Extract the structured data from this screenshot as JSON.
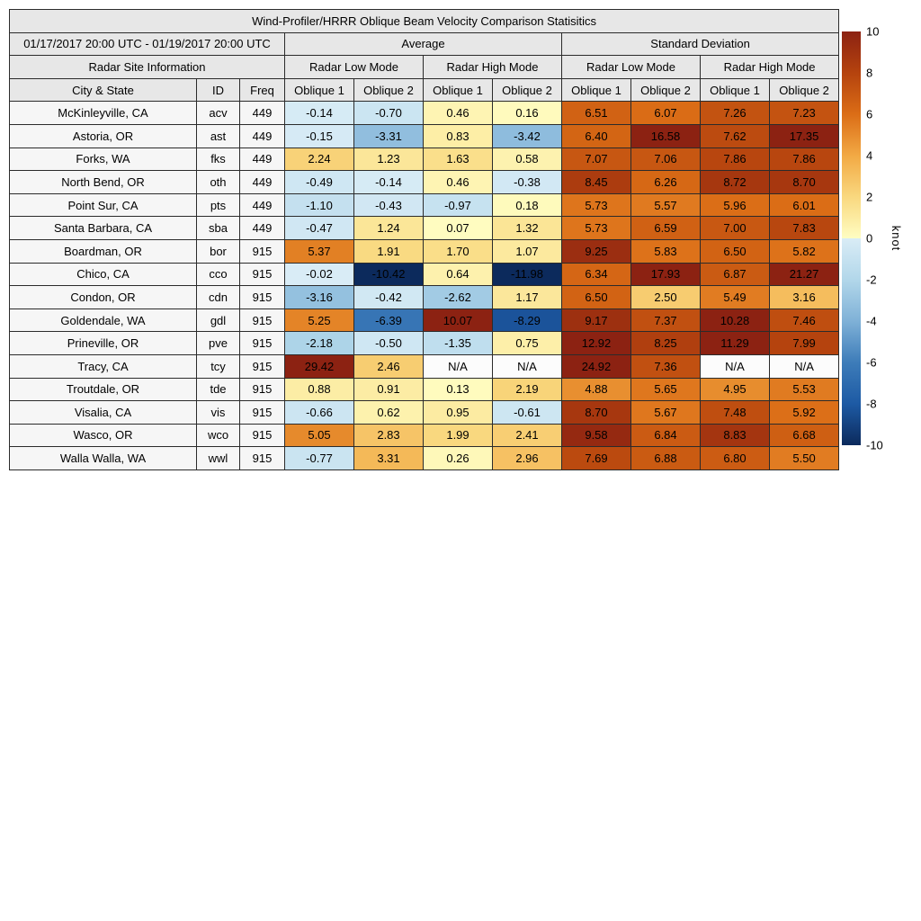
{
  "chart_data": {
    "type": "heatmap",
    "title": "Wind-Profiler/HRRR Oblique Beam Velocity Comparison Statisitics",
    "date_range": "01/17/2017 20:00 UTC - 01/19/2017 20:00 UTC",
    "section_headers": {
      "average": "Average",
      "std_dev": "Standard Deviation"
    },
    "subsection_headers": [
      "Radar Site Information",
      "Radar Low Mode",
      "Radar High Mode",
      "Radar Low Mode",
      "Radar High Mode"
    ],
    "column_headers": [
      "City & State",
      "ID",
      "Freq",
      "Oblique 1",
      "Oblique 2",
      "Oblique 1",
      "Oblique 2",
      "Oblique 1",
      "Oblique 2",
      "Oblique 1",
      "Oblique 2"
    ],
    "rows": [
      {
        "city": "McKinleyville, CA",
        "id": "acv",
        "freq": "449",
        "values": [
          "-0.14",
          "-0.70",
          "0.46",
          "0.16",
          "6.51",
          "6.07",
          "7.26",
          "7.23"
        ]
      },
      {
        "city": "Astoria, OR",
        "id": "ast",
        "freq": "449",
        "values": [
          "-0.15",
          "-3.31",
          "0.83",
          "-3.42",
          "6.40",
          "16.58",
          "7.62",
          "17.35"
        ]
      },
      {
        "city": "Forks, WA",
        "id": "fks",
        "freq": "449",
        "values": [
          "2.24",
          "1.23",
          "1.63",
          "0.58",
          "7.07",
          "7.06",
          "7.86",
          "7.86"
        ]
      },
      {
        "city": "North Bend, OR",
        "id": "oth",
        "freq": "449",
        "values": [
          "-0.49",
          "-0.14",
          "0.46",
          "-0.38",
          "8.45",
          "6.26",
          "8.72",
          "8.70"
        ]
      },
      {
        "city": "Point Sur, CA",
        "id": "pts",
        "freq": "449",
        "values": [
          "-1.10",
          "-0.43",
          "-0.97",
          "0.18",
          "5.73",
          "5.57",
          "5.96",
          "6.01"
        ]
      },
      {
        "city": "Santa Barbara, CA",
        "id": "sba",
        "freq": "449",
        "values": [
          "-0.47",
          "1.24",
          "0.07",
          "1.32",
          "5.73",
          "6.59",
          "7.00",
          "7.83"
        ]
      },
      {
        "city": "Boardman, OR",
        "id": "bor",
        "freq": "915",
        "values": [
          "5.37",
          "1.91",
          "1.70",
          "1.07",
          "9.25",
          "5.83",
          "6.50",
          "5.82"
        ]
      },
      {
        "city": "Chico, CA",
        "id": "cco",
        "freq": "915",
        "values": [
          "-0.02",
          "-10.42",
          "0.64",
          "-11.98",
          "6.34",
          "17.93",
          "6.87",
          "21.27"
        ]
      },
      {
        "city": "Condon, OR",
        "id": "cdn",
        "freq": "915",
        "values": [
          "-3.16",
          "-0.42",
          "-2.62",
          "1.17",
          "6.50",
          "2.50",
          "5.49",
          "3.16"
        ]
      },
      {
        "city": "Goldendale, WA",
        "id": "gdl",
        "freq": "915",
        "values": [
          "5.25",
          "-6.39",
          "10.07",
          "-8.29",
          "9.17",
          "7.37",
          "10.28",
          "7.46"
        ]
      },
      {
        "city": "Prineville, OR",
        "id": "pve",
        "freq": "915",
        "values": [
          "-2.18",
          "-0.50",
          "-1.35",
          "0.75",
          "12.92",
          "8.25",
          "11.29",
          "7.99"
        ]
      },
      {
        "city": "Tracy, CA",
        "id": "tcy",
        "freq": "915",
        "values": [
          "29.42",
          "2.46",
          "N/A",
          "N/A",
          "24.92",
          "7.36",
          "N/A",
          "N/A"
        ]
      },
      {
        "city": "Troutdale, OR",
        "id": "tde",
        "freq": "915",
        "values": [
          "0.88",
          "0.91",
          "0.13",
          "2.19",
          "4.88",
          "5.65",
          "4.95",
          "5.53"
        ]
      },
      {
        "city": "Visalia, CA",
        "id": "vis",
        "freq": "915",
        "values": [
          "-0.66",
          "0.62",
          "0.95",
          "-0.61",
          "8.70",
          "5.67",
          "7.48",
          "5.92"
        ]
      },
      {
        "city": "Wasco, OR",
        "id": "wco",
        "freq": "915",
        "values": [
          "5.05",
          "2.83",
          "1.99",
          "2.41",
          "9.58",
          "6.84",
          "8.83",
          "6.68"
        ]
      },
      {
        "city": "Walla Walla, WA",
        "id": "wwl",
        "freq": "915",
        "values": [
          "-0.77",
          "3.31",
          "0.26",
          "2.96",
          "7.69",
          "6.88",
          "6.80",
          "5.50"
        ]
      }
    ],
    "colorbar": {
      "unit": "knot",
      "vmin": -10,
      "vmax": 10,
      "ticks": [
        10,
        8,
        6,
        4,
        2,
        0,
        -2,
        -4,
        -6,
        -8,
        -10
      ],
      "positive_stops": [
        [
          0,
          "#fffdc2"
        ],
        [
          2,
          "#f9d87f"
        ],
        [
          4,
          "#f2a944"
        ],
        [
          6,
          "#db6d16"
        ],
        [
          8,
          "#b5430e"
        ],
        [
          10,
          "#8c2212"
        ]
      ],
      "negative_stops": [
        [
          0,
          "#d9ecf6"
        ],
        [
          2,
          "#b2d7ea"
        ],
        [
          4,
          "#7fb1d7"
        ],
        [
          6,
          "#3d7cb9"
        ],
        [
          8,
          "#1d5aa4"
        ],
        [
          10,
          "#0c2a5c"
        ]
      ],
      "na_color": "#fcfcfc"
    }
  }
}
